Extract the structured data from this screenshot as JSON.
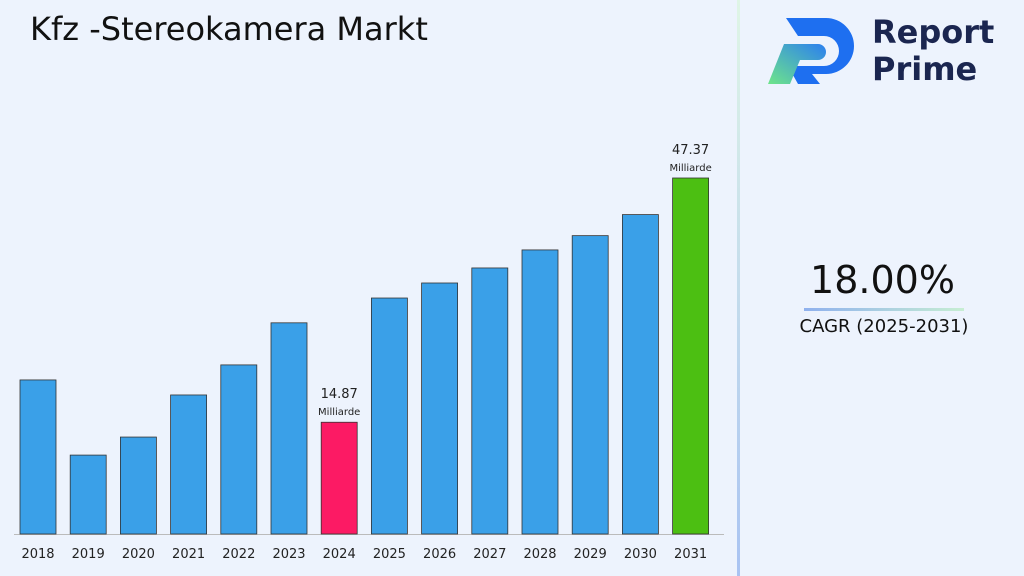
{
  "title": "Kfz -Stereokamera Markt",
  "logo": {
    "line1": "Report",
    "line2": "Prime"
  },
  "cagr": {
    "value": "18.00%",
    "label": "CAGR (2025-2031)"
  },
  "chart_data": {
    "type": "bar",
    "title": "Kfz -Stereokamera Markt",
    "xlabel": "",
    "ylabel": "",
    "categories": [
      "2018",
      "2019",
      "2020",
      "2021",
      "2022",
      "2023",
      "2024",
      "2025",
      "2026",
      "2027",
      "2028",
      "2029",
      "2030",
      "2031"
    ],
    "values": [
      20.5,
      10.5,
      12.9,
      18.5,
      22.5,
      28.1,
      14.87,
      31.4,
      33.4,
      35.4,
      37.8,
      39.7,
      42.5,
      47.37
    ],
    "ylim": [
      0,
      47.37
    ],
    "grid": false,
    "colors": {
      "default": "#3aa0e8",
      "highlight_2024": "#fc1a64",
      "highlight_2031": "#4cbf12"
    },
    "annotations": [
      {
        "category": "2024",
        "value": "14.87",
        "unit": "Milliarde"
      },
      {
        "category": "2031",
        "value": "47.37",
        "unit": "Milliarde"
      }
    ]
  }
}
